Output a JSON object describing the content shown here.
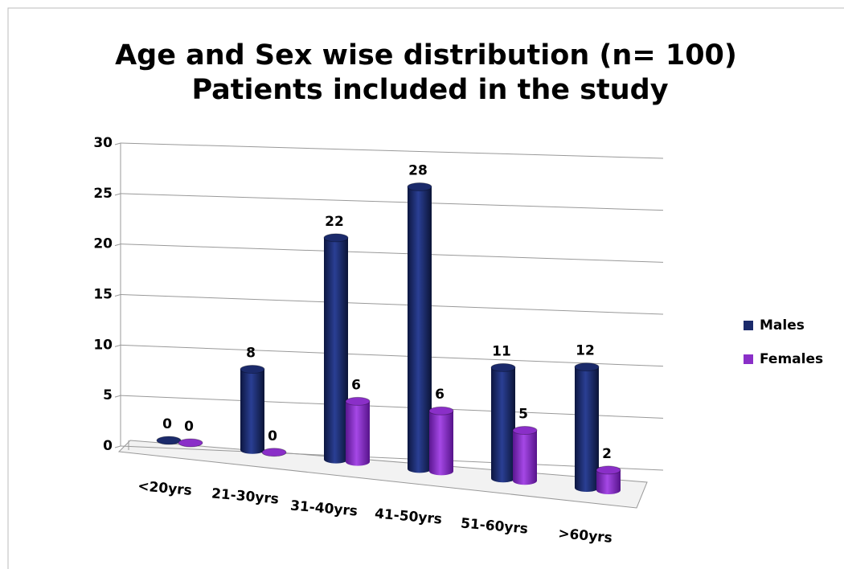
{
  "chart_data": {
    "type": "bar3d",
    "title": [
      "Age and Sex wise  distribution (n= 100)",
      "Patients included in the study"
    ],
    "categories": [
      "<20yrs",
      "21-30yrs",
      "31-40yrs",
      "41-50yrs",
      "51-60yrs",
      ">60yrs"
    ],
    "series": [
      {
        "name": "Males",
        "color": "#1b2a6b",
        "values": [
          0,
          8,
          22,
          28,
          11,
          12
        ]
      },
      {
        "name": "Females",
        "color": "#8a2fc8",
        "values": [
          0,
          0,
          6,
          6,
          5,
          2
        ]
      }
    ],
    "ylim": [
      0,
      30
    ],
    "yticks": [
      0,
      5,
      10,
      15,
      20,
      25,
      30
    ],
    "grid": true,
    "legend": "right"
  }
}
